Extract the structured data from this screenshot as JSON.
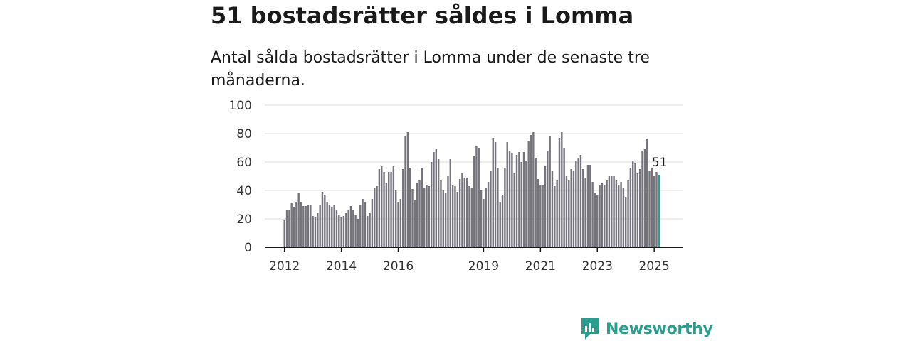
{
  "title": "51 bostadsrätter såldes i Lomma",
  "subtitle": "Antal sålda bostadsrätter i Lomma under de senaste tre månaderna.",
  "brand": {
    "name": "Newsworthy",
    "icon": "bar-chart-bubble-icon"
  },
  "colors": {
    "bar": "#75737b",
    "highlight": "#2a9d8f",
    "grid": "#dddddd",
    "axis": "#1a1a1a",
    "brand": "#2a9d8f"
  },
  "chart_data": {
    "type": "bar",
    "x_start": "2012-01",
    "frequency": "monthly",
    "ylim": [
      0,
      100
    ],
    "yticks": [
      0,
      20,
      40,
      60,
      80,
      100
    ],
    "xticks": [
      "2012",
      "2014",
      "2016",
      "2019",
      "2021",
      "2023",
      "2025"
    ],
    "grid": true,
    "highlight_last": true,
    "last_label": "51",
    "values": [
      19,
      26,
      26,
      31,
      28,
      32,
      38,
      32,
      29,
      29,
      30,
      30,
      22,
      21,
      24,
      30,
      39,
      37,
      32,
      30,
      28,
      30,
      26,
      23,
      21,
      22,
      24,
      26,
      29,
      26,
      23,
      20,
      30,
      34,
      32,
      22,
      24,
      34,
      42,
      43,
      55,
      57,
      53,
      45,
      53,
      53,
      57,
      40,
      32,
      34,
      55,
      78,
      81,
      56,
      41,
      33,
      45,
      47,
      56,
      42,
      44,
      43,
      60,
      67,
      69,
      62,
      47,
      40,
      38,
      50,
      62,
      44,
      43,
      39,
      48,
      52,
      49,
      49,
      43,
      42,
      64,
      71,
      70,
      40,
      34,
      42,
      46,
      54,
      77,
      74,
      56,
      32,
      37,
      56,
      74,
      68,
      66,
      52,
      65,
      67,
      60,
      67,
      61,
      75,
      79,
      81,
      63,
      48,
      44,
      44,
      57,
      68,
      78,
      54,
      43,
      47,
      77,
      81,
      70,
      50,
      47,
      55,
      54,
      61,
      63,
      65,
      55,
      49,
      58,
      58,
      46,
      38,
      37,
      44,
      45,
      44,
      47,
      50,
      50,
      50,
      47,
      44,
      46,
      42,
      35,
      47,
      56,
      61,
      59,
      52,
      55,
      68,
      69,
      76,
      54,
      56,
      50,
      53,
      51
    ]
  }
}
